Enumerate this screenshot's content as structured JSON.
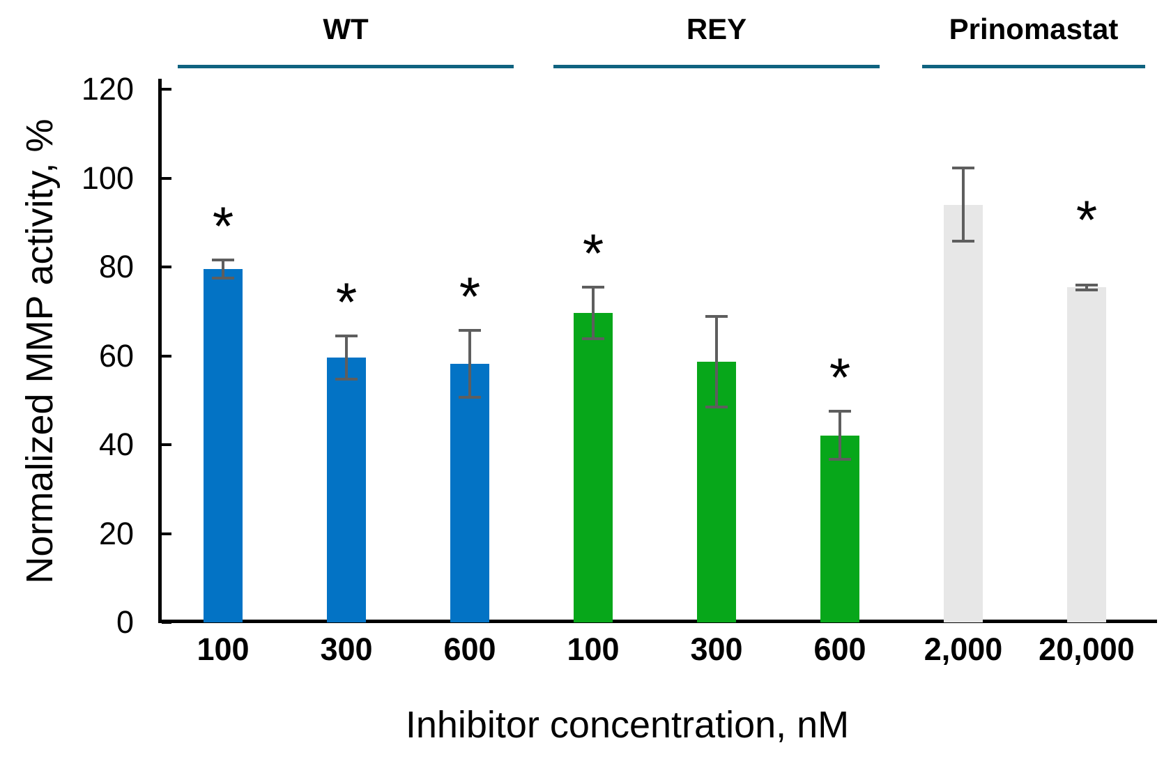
{
  "chart_data": {
    "type": "bar",
    "title": "",
    "ylabel": "Normalized MMP activity, %",
    "xlabel": "Inhibitor concentration, nM",
    "ylim": [
      0,
      120
    ],
    "yticks": [
      0,
      20,
      40,
      60,
      80,
      100,
      120
    ],
    "grid": false,
    "legend_position": "none",
    "significance_marker": "*",
    "error_bar_color": "#5e5e5e",
    "group_line_color": "#0f6380",
    "axis_color": "#000000",
    "groups": [
      {
        "name": "WT",
        "color": "#0373c5",
        "bars": [
          {
            "category": "100",
            "value": 79.5,
            "error": 2.0,
            "significant": true
          },
          {
            "category": "300",
            "value": 59.6,
            "error": 4.9,
            "significant": true
          },
          {
            "category": "600",
            "value": 58.2,
            "error": 7.5,
            "significant": true
          }
        ]
      },
      {
        "name": "REY",
        "color": "#07a71a",
        "bars": [
          {
            "category": "100",
            "value": 69.6,
            "error": 5.8,
            "significant": true
          },
          {
            "category": "300",
            "value": 58.6,
            "error": 10.2,
            "significant": false
          },
          {
            "category": "600",
            "value": 42.1,
            "error": 5.4,
            "significant": true
          }
        ]
      },
      {
        "name": "Prinomastat",
        "color": "#e7e7e7",
        "bars": [
          {
            "category": "2,000",
            "value": 94.0,
            "error": 8.2,
            "significant": false
          },
          {
            "category": "20,000",
            "value": 75.4,
            "error": 0.6,
            "significant": true,
            "star_dy": -45
          }
        ]
      }
    ]
  }
}
